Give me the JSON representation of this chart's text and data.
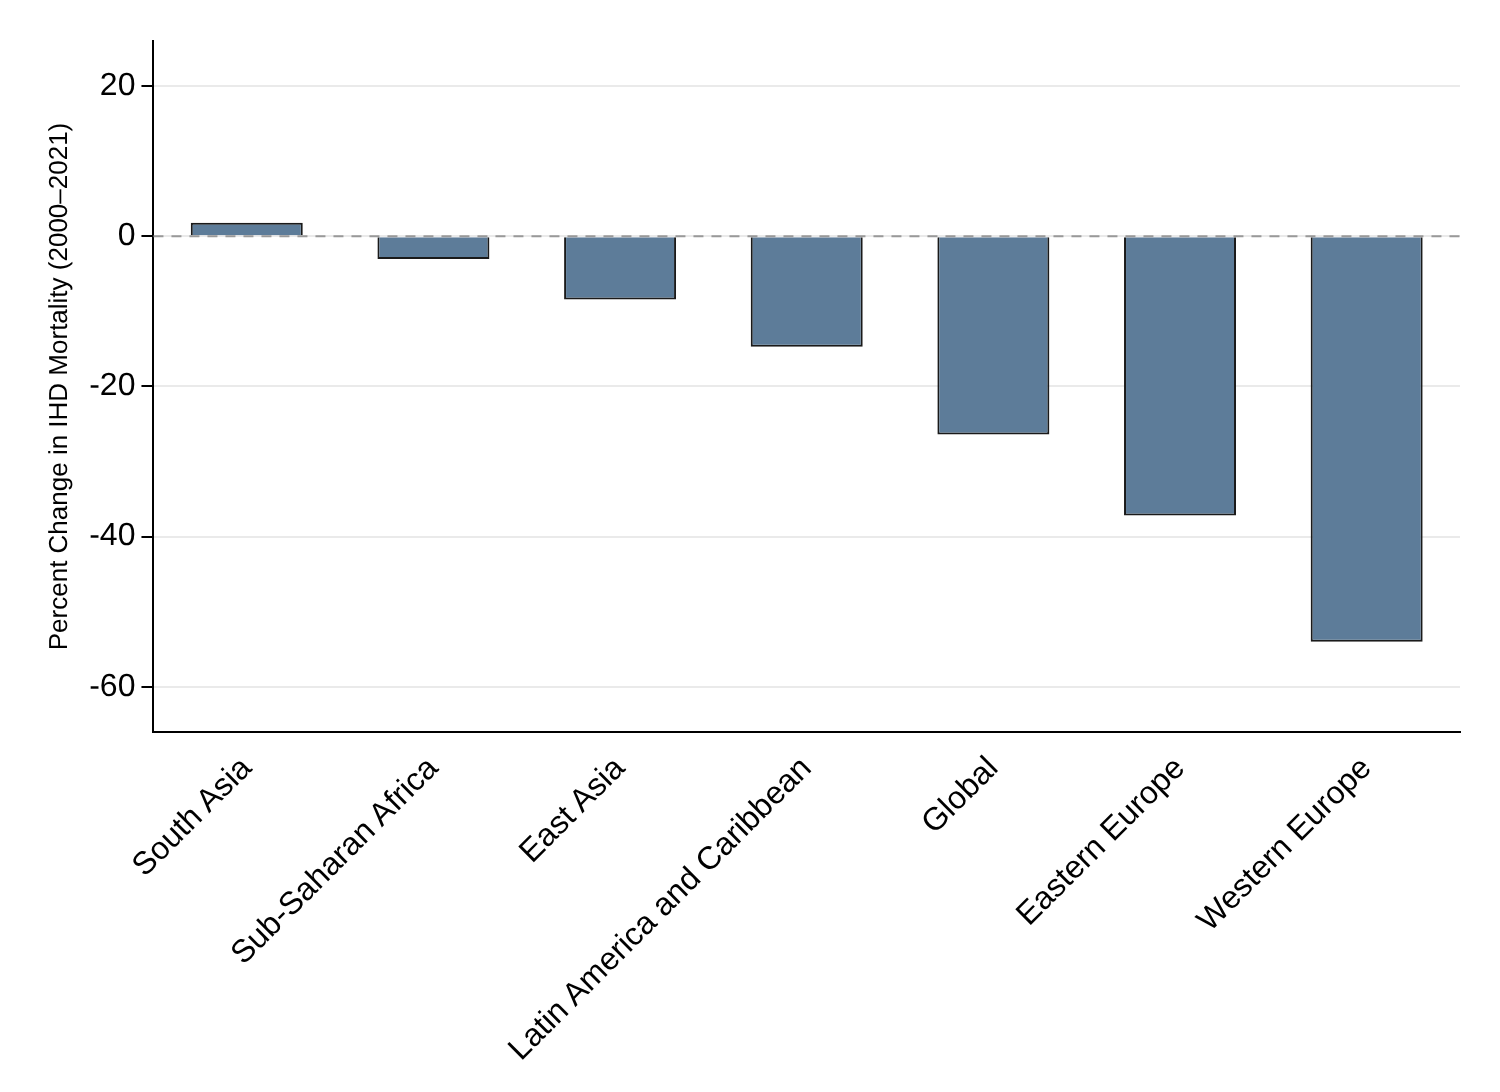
{
  "chart_data": {
    "type": "bar",
    "ylabel": "Percent Change in IHD Mortality (2000–2021)",
    "categories": [
      "South Asia",
      "Sub-Saharan Africa",
      "East Asia",
      "Latin America and Caribbean",
      "Global",
      "Eastern Europe",
      "Western Europe"
    ],
    "series": [
      {
        "color": "#5d7c99",
        "values": [
          1.8,
          -3,
          -8.4,
          -14.7,
          -26.4,
          -37.2,
          -54
        ]
      }
    ],
    "ylim": [
      -66,
      26
    ],
    "yticks": [
      -60,
      -40,
      -20,
      0,
      20
    ],
    "grid": "y",
    "legend": false,
    "ref_lines": [
      {
        "axis": "y",
        "value": 0,
        "color": "#999999",
        "line_style": "dashed"
      }
    ]
  }
}
